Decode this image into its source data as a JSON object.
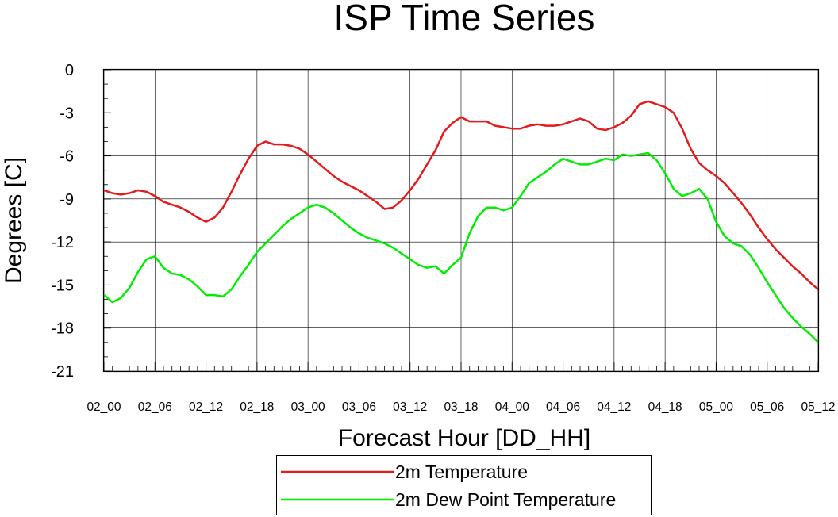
{
  "chart_data": {
    "type": "line",
    "title": "ISP Time Series",
    "xlabel": "Forecast Hour [DD_HH]",
    "ylabel": "Degrees [C]",
    "xlim": [
      0,
      84
    ],
    "ylim": [
      -21,
      0
    ],
    "yticks": [
      0,
      -3,
      -6,
      -9,
      -12,
      -15,
      -18,
      -21
    ],
    "ytick_labels": [
      "0",
      "-3",
      "-6",
      "-9",
      "-12",
      "-15",
      "-18",
      "-21"
    ],
    "x_ticks": [
      0,
      6,
      12,
      18,
      24,
      30,
      36,
      42,
      48,
      54,
      60,
      66,
      72,
      78,
      84
    ],
    "x_tick_labels": [
      "02_00",
      "02_06",
      "02_12",
      "02_18",
      "03_00",
      "03_06",
      "03_12",
      "03_18",
      "04_00",
      "04_06",
      "04_12",
      "04_18",
      "05_00",
      "05_06",
      "05_12"
    ],
    "grid": true,
    "legend_position": "bottom-center",
    "x": [
      0,
      1,
      2,
      3,
      4,
      5,
      6,
      7,
      8,
      9,
      10,
      11,
      12,
      13,
      14,
      15,
      16,
      17,
      18,
      19,
      20,
      21,
      22,
      23,
      24,
      25,
      26,
      27,
      28,
      29,
      30,
      31,
      32,
      33,
      34,
      35,
      36,
      37,
      38,
      39,
      40,
      41,
      42,
      43,
      44,
      45,
      46,
      47,
      48,
      49,
      50,
      51,
      52,
      53,
      54,
      55,
      56,
      57,
      58,
      59,
      60,
      61,
      62,
      63,
      64,
      65,
      66,
      67,
      68,
      69,
      70,
      71,
      72,
      73,
      74,
      75,
      76,
      77,
      78,
      79,
      80,
      81,
      82,
      83,
      84
    ],
    "series": [
      {
        "name": "2m Temperature",
        "color": "#e41a1c",
        "values": [
          -8.4,
          -8.6,
          -8.7,
          -8.6,
          -8.4,
          -8.5,
          -8.8,
          -9.2,
          -9.4,
          -9.6,
          -9.9,
          -10.3,
          -10.6,
          -10.3,
          -9.6,
          -8.5,
          -7.3,
          -6.2,
          -5.3,
          -5.0,
          -5.2,
          -5.2,
          -5.3,
          -5.5,
          -5.9,
          -6.4,
          -6.9,
          -7.4,
          -7.8,
          -8.1,
          -8.4,
          -8.8,
          -9.2,
          -9.7,
          -9.6,
          -9.1,
          -8.4,
          -7.6,
          -6.6,
          -5.6,
          -4.3,
          -3.7,
          -3.3,
          -3.6,
          -3.6,
          -3.6,
          -3.9,
          -4.0,
          -4.1,
          -4.1,
          -3.9,
          -3.8,
          -3.9,
          -3.9,
          -3.8,
          -3.6,
          -3.4,
          -3.6,
          -4.1,
          -4.2,
          -4.0,
          -3.7,
          -3.2,
          -2.4,
          -2.2,
          -2.4,
          -2.6,
          -3.0,
          -4.1,
          -5.5,
          -6.5,
          -7.0,
          -7.4,
          -7.9,
          -8.6,
          -9.3,
          -10.1,
          -11.0,
          -11.8,
          -12.5,
          -13.1,
          -13.7,
          -14.2,
          -14.8,
          -15.3
        ]
      },
      {
        "name": "2m Dew Point Temperature",
        "color": "#00ee00",
        "values": [
          -15.7,
          -16.2,
          -15.9,
          -15.2,
          -14.1,
          -13.2,
          -13.0,
          -13.8,
          -14.2,
          -14.3,
          -14.6,
          -15.1,
          -15.7,
          -15.7,
          -15.8,
          -15.3,
          -14.4,
          -13.6,
          -12.7,
          -12.1,
          -11.5,
          -10.9,
          -10.4,
          -10.0,
          -9.6,
          -9.4,
          -9.6,
          -10.0,
          -10.5,
          -11.0,
          -11.4,
          -11.7,
          -11.9,
          -12.1,
          -12.4,
          -12.8,
          -13.2,
          -13.6,
          -13.8,
          -13.7,
          -14.2,
          -13.6,
          -13.1,
          -11.4,
          -10.2,
          -9.6,
          -9.6,
          -9.8,
          -9.6,
          -8.8,
          -7.9,
          -7.5,
          -7.1,
          -6.6,
          -6.2,
          -6.4,
          -6.6,
          -6.6,
          -6.4,
          -6.2,
          -6.3,
          -5.9,
          -6.0,
          -5.9,
          -5.8,
          -6.3,
          -7.2,
          -8.3,
          -8.8,
          -8.6,
          -8.3,
          -9.0,
          -10.6,
          -11.6,
          -12.1,
          -12.3,
          -12.9,
          -13.8,
          -14.8,
          -15.7,
          -16.6,
          -17.3,
          -17.9,
          -18.4,
          -19.0
        ]
      }
    ]
  }
}
